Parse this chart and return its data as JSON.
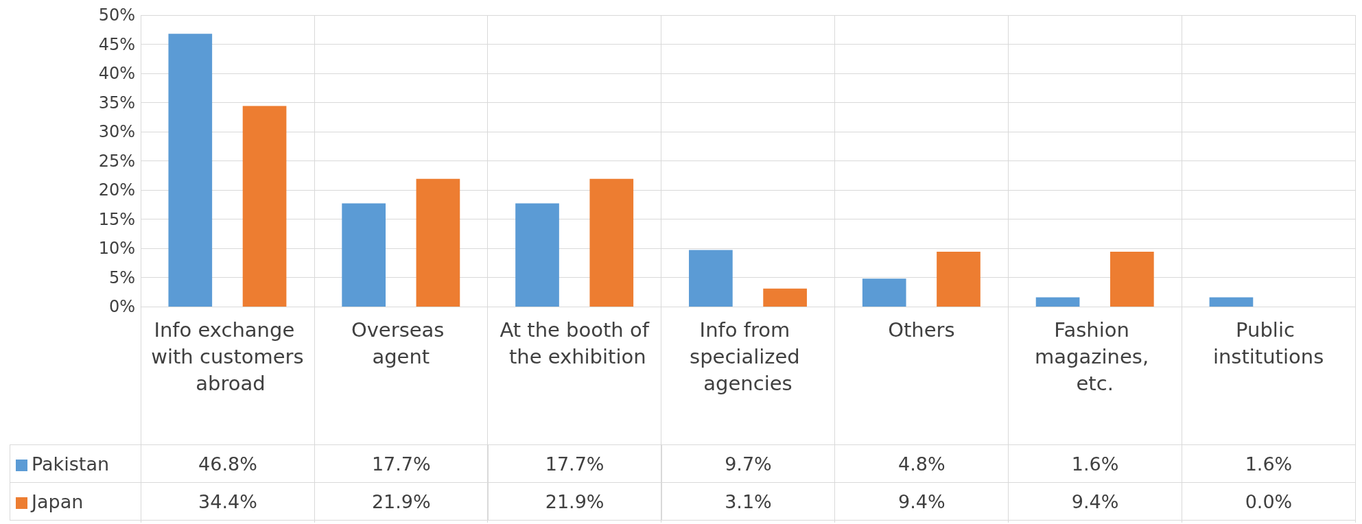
{
  "chart_data": {
    "type": "bar",
    "categories": [
      "Info exchange with customers abroad",
      "Overseas agent",
      "At the booth of the exhibition",
      "Info from specialized agencies",
      "Others",
      "Fashion magazines, etc.",
      "Public institutions"
    ],
    "series": [
      {
        "name": "Pakistan",
        "color": "#5b9bd5",
        "values": [
          46.8,
          17.7,
          17.7,
          9.7,
          4.8,
          1.6,
          1.6
        ],
        "value_labels": [
          "46.8%",
          "17.7%",
          "17.7%",
          "9.7%",
          "4.8%",
          "1.6%",
          "1.6%"
        ]
      },
      {
        "name": "Japan",
        "color": "#ed7d31",
        "values": [
          34.4,
          21.9,
          21.9,
          3.1,
          9.4,
          9.4,
          0.0
        ],
        "value_labels": [
          "34.4%",
          "21.9%",
          "21.9%",
          "3.1%",
          "9.4%",
          "9.4%",
          "0.0%"
        ]
      }
    ],
    "ylim": [
      0,
      50
    ],
    "yticks": [
      {
        "value": 0,
        "label": "0%"
      },
      {
        "value": 5,
        "label": "5%"
      },
      {
        "value": 10,
        "label": "10%"
      },
      {
        "value": 15,
        "label": "15%"
      },
      {
        "value": 20,
        "label": "20%"
      },
      {
        "value": 25,
        "label": "25%"
      },
      {
        "value": 30,
        "label": "30%"
      },
      {
        "value": 35,
        "label": "35%"
      },
      {
        "value": 40,
        "label": "40%"
      },
      {
        "value": 45,
        "label": "45%"
      },
      {
        "value": 50,
        "label": "50%"
      }
    ],
    "grid": true,
    "legend": "bottom left"
  }
}
